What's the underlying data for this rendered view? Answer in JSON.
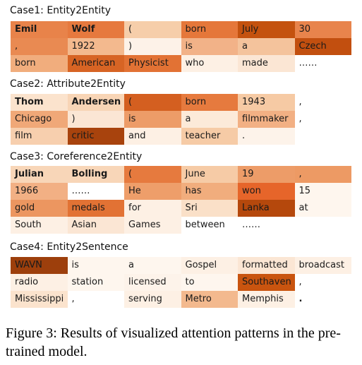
{
  "cases": [
    {
      "title": "Case1: Entity2Entity",
      "rows": [
        [
          {
            "text": "Emil",
            "bold": true,
            "color": "#e8834a"
          },
          {
            "text": "Wolf",
            "bold": true,
            "color": "#e6793e"
          },
          {
            "text": "(",
            "bold": false,
            "color": "#f6ceaa"
          },
          {
            "text": "born",
            "bold": false,
            "color": "#e5773a"
          },
          {
            "text": "July",
            "bold": false,
            "color": "#c4520f"
          },
          {
            "text": "30",
            "bold": false,
            "color": "#e8844c"
          }
        ],
        [
          {
            "text": ",",
            "bold": false,
            "color": "#e98a52"
          },
          {
            "text": "1922",
            "bold": false,
            "color": "#f3b98e"
          },
          {
            "text": ")",
            "bold": false,
            "color": "#fdf2e8"
          },
          {
            "text": "is",
            "bold": false,
            "color": "#f2b288"
          },
          {
            "text": "a",
            "bold": false,
            "color": "#f4c39c"
          },
          {
            "text": "Czech",
            "bold": false,
            "color": "#c24f0f"
          }
        ],
        [
          {
            "text": "born",
            "bold": false,
            "color": "#f1ad7d"
          },
          {
            "text": "American",
            "bold": false,
            "color": "#d76424"
          },
          {
            "text": "Physicist",
            "bold": false,
            "color": "#e27234"
          },
          {
            "text": "who",
            "bold": false,
            "color": "#fdf0e4"
          },
          {
            "text": "made",
            "bold": false,
            "color": "#fbe6d4"
          },
          {
            "text": "……",
            "bold": false,
            "color": "#ffffff"
          }
        ]
      ]
    },
    {
      "title": "Case2: Attribute2Entity",
      "rows": [
        [
          {
            "text": "Thom",
            "bold": true,
            "color": "#fbe3cd"
          },
          {
            "text": "Andersen",
            "bold": true,
            "color": "#f8d5b6"
          },
          {
            "text": "(",
            "bold": false,
            "color": "#d45f20"
          },
          {
            "text": "born",
            "bold": false,
            "color": "#e67a3e"
          },
          {
            "text": "1943",
            "bold": false,
            "color": "#f6caa4"
          },
          {
            "text": ",",
            "bold": false,
            "color": "#ffffff"
          }
        ],
        [
          {
            "text": "Chicago",
            "bold": false,
            "color": "#f0a878"
          },
          {
            "text": ")",
            "bold": false,
            "color": "#fbe6d4"
          },
          {
            "text": "is",
            "bold": false,
            "color": "#ed9c68"
          },
          {
            "text": "a",
            "bold": false,
            "color": "#fcead9"
          },
          {
            "text": "filmmaker",
            "bold": false,
            "color": "#f2b084"
          },
          {
            "text": ",",
            "bold": false,
            "color": "#ffffff"
          }
        ],
        [
          {
            "text": "film",
            "bold": false,
            "color": "#f7cfae"
          },
          {
            "text": "critic",
            "bold": false,
            "color": "#a8430d"
          },
          {
            "text": "and",
            "bold": false,
            "color": "#fdf0e4"
          },
          {
            "text": "teacher",
            "bold": false,
            "color": "#f6cba6"
          },
          {
            "text": ".",
            "bold": false,
            "color": "#fdf3ea"
          },
          {
            "text": "",
            "bold": false,
            "color": "#ffffff"
          }
        ]
      ]
    },
    {
      "title": "Case3: Coreference2Entity",
      "rows": [
        [
          {
            "text": "Julian",
            "bold": true,
            "color": "#f8d6b8"
          },
          {
            "text": "Bolling",
            "bold": true,
            "color": "#f8d6b8"
          },
          {
            "text": "(",
            "bold": false,
            "color": "#e67a3e"
          },
          {
            "text": "June",
            "bold": false,
            "color": "#f6cba6"
          },
          {
            "text": "19",
            "bold": false,
            "color": "#ed9c68"
          },
          {
            "text": ",",
            "bold": false,
            "color": "#ed9a64"
          }
        ],
        [
          {
            "text": "1966",
            "bold": false,
            "color": "#f2b084"
          },
          {
            "text": "……",
            "bold": false,
            "color": "#ffffff"
          },
          {
            "text": "He",
            "bold": false,
            "color": "#ee9e6a"
          },
          {
            "text": "has",
            "bold": false,
            "color": "#f1ad7d"
          },
          {
            "text": "won",
            "bold": false,
            "color": "#e6652a"
          },
          {
            "text": "15",
            "bold": false,
            "color": "#fef6ee"
          }
        ],
        [
          {
            "text": "gold",
            "bold": false,
            "color": "#ec9660"
          },
          {
            "text": "medals",
            "bold": false,
            "color": "#e27234"
          },
          {
            "text": "for",
            "bold": false,
            "color": "#fdf0e4"
          },
          {
            "text": "Sri",
            "bold": false,
            "color": "#fae0c8"
          },
          {
            "text": "Lanka",
            "bold": false,
            "color": "#b5480c"
          },
          {
            "text": "at",
            "bold": false,
            "color": "#fef6ee"
          }
        ],
        [
          {
            "text": "South",
            "bold": false,
            "color": "#fdf0e4"
          },
          {
            "text": "Asian",
            "bold": false,
            "color": "#fbe6d4"
          },
          {
            "text": "Games",
            "bold": false,
            "color": "#fdf0e4"
          },
          {
            "text": "between",
            "bold": false,
            "color": "#ffffff"
          },
          {
            "text": "……",
            "bold": false,
            "color": "#ffffff"
          },
          {
            "text": "",
            "bold": false,
            "color": "#ffffff"
          }
        ]
      ]
    },
    {
      "title": "Case4: Entity2Sentence",
      "rows": [
        [
          {
            "text": "WAVN",
            "bold": false,
            "color": "#9d3f0c"
          },
          {
            "text": "is",
            "bold": false,
            "color": "#fef6ee"
          },
          {
            "text": "a",
            "bold": false,
            "color": "#fef6ee"
          },
          {
            "text": "Gospel",
            "bold": false,
            "color": "#fdf0e4"
          },
          {
            "text": "formatted",
            "bold": false,
            "color": "#fbe6d4"
          },
          {
            "text": "broadcast",
            "bold": false,
            "color": "#fdf0e4"
          }
        ],
        [
          {
            "text": "radio",
            "bold": false,
            "color": "#fdf0e4"
          },
          {
            "text": "station",
            "bold": false,
            "color": "#fef6ee"
          },
          {
            "text": "licensed",
            "bold": false,
            "color": "#fdf3ea"
          },
          {
            "text": "to",
            "bold": false,
            "color": "#fef6ee"
          },
          {
            "text": "Southaven",
            "bold": false,
            "color": "#c9540f"
          },
          {
            "text": ",",
            "bold": false,
            "color": "#ffffff"
          }
        ],
        [
          {
            "text": "Mississippi",
            "bold": false,
            "color": "#fbe3cd"
          },
          {
            "text": ",",
            "bold": false,
            "color": "#ffffff"
          },
          {
            "text": "serving",
            "bold": false,
            "color": "#fdf0e4"
          },
          {
            "text": "Metro",
            "bold": false,
            "color": "#f3b98e"
          },
          {
            "text": "Memphis",
            "bold": false,
            "color": "#fdf0e4"
          },
          {
            "text": ".",
            "bold": true,
            "color": "#ffffff"
          }
        ]
      ]
    }
  ],
  "caption": "Figure 3:  Results of visualized attention patterns in the pre-trained model."
}
